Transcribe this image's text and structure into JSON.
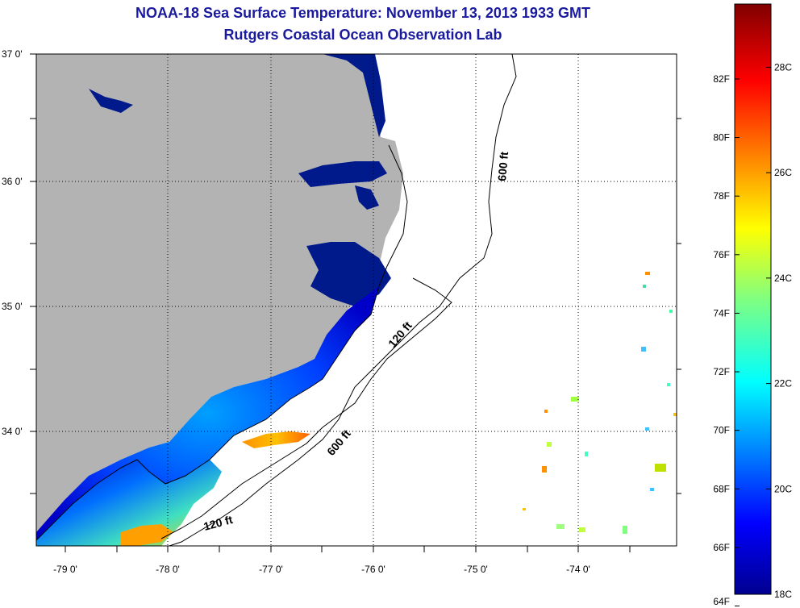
{
  "title": {
    "line1": "NOAA-18 Sea Surface Temperature:  November 13, 2013 1933 GMT",
    "line2": "Rutgers Coastal Ocean Observation Lab"
  },
  "map": {
    "longitude_ticks": [
      "-79 0'",
      "-78 0'",
      "-77 0'",
      "-76 0'",
      "-75 0'",
      "-74 0'"
    ],
    "latitude_ticks": [
      "37 0'",
      "36 0'",
      "35 0'",
      "34 0'"
    ],
    "contour_labels": [
      "600 ft",
      "120 ft",
      "600 ft",
      "120 ft"
    ],
    "colors": {
      "land": "#b3b3b3",
      "ocean_no_data": "#ffffff",
      "coastline": "#000000"
    }
  },
  "colorbar": {
    "fahrenheit_labels": [
      "82F",
      "80F",
      "78F",
      "76F",
      "74F",
      "72F",
      "70F",
      "68F",
      "66F",
      "64F"
    ],
    "celsius_labels": [
      "28C",
      "26C",
      "24C",
      "22C",
      "20C",
      "18C"
    ],
    "range_c": [
      18,
      29.2
    ],
    "colormap": "jet"
  }
}
